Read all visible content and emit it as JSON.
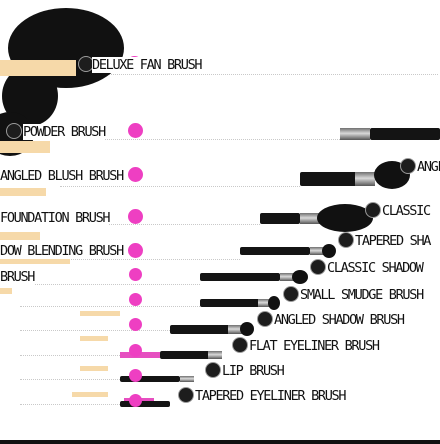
{
  "brushes": [
    {
      "id": "deluxe-fan",
      "label": "DELUXE FAN BRUSH"
    },
    {
      "id": "powder",
      "label": "POWDER BRUSH"
    },
    {
      "id": "angled-blush",
      "label": "ANGLED BLUSH BRUSH"
    },
    {
      "id": "classic-foundation",
      "label": "CLASSIC FOUNDATION BRUSH"
    },
    {
      "id": "tapered-shadow",
      "label": "TAPERED SHADOW BLENDING BRUSH"
    },
    {
      "id": "classic-shadow",
      "label": "CLASSIC SHADOW BRUSH"
    },
    {
      "id": "small-smudge",
      "label": "SMALL SMUDGE BRUSH"
    },
    {
      "id": "angled-shadow",
      "label": "ANGLED SHADOW BRUSH"
    },
    {
      "id": "flat-eyeliner",
      "label": "FLAT EYELINER BRUSH"
    },
    {
      "id": "lip",
      "label": "LIP BRUSH"
    },
    {
      "id": "tapered-eyeliner",
      "label": "TAPERED EYELINER BRUSH"
    }
  ],
  "fragments": {
    "foundation_left": "FOUNDATION BRUSH",
    "foundation_right": "CLASSIC",
    "tapered_left": "DOW BLENDING BRUSH",
    "tapered_right": "TAPERED SHA",
    "classic_shadow_left": "BRUSH",
    "classic_shadow_right": "CLASSIC SHADOW"
  },
  "colors": {
    "accent_pink": "#ee3fc2",
    "bristle_gold": "#f6d9a9",
    "ink": "#111111"
  }
}
